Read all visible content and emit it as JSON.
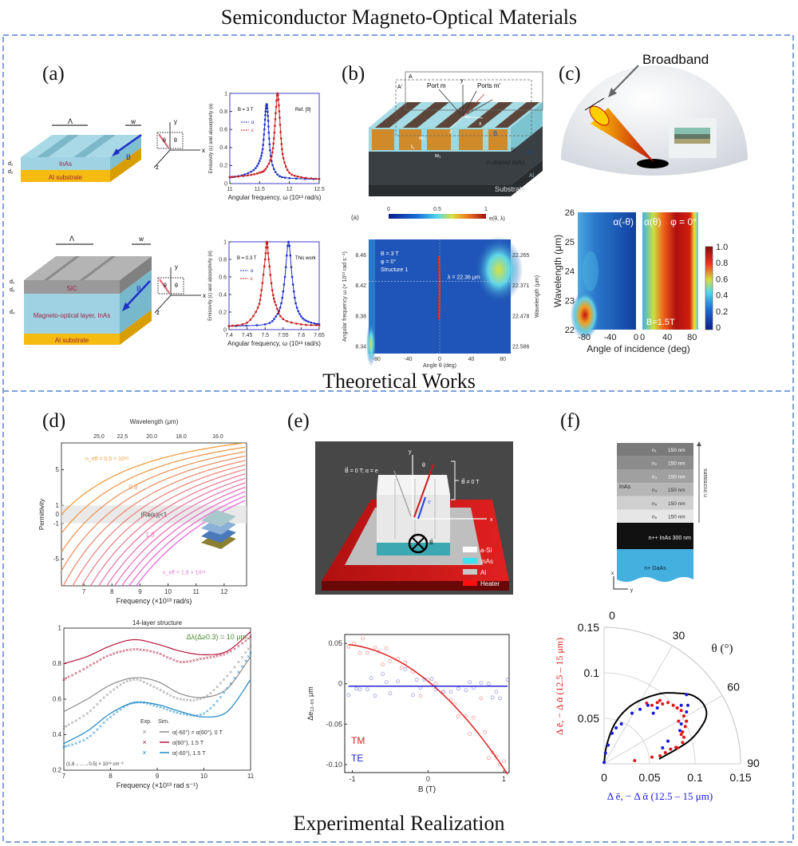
{
  "title": "Semiconductor Magneto-Optical Materials",
  "sections": {
    "theory": "Theoretical Works",
    "experiment": "Experimental Realization"
  },
  "colors": {
    "frame": "#7fa1d9",
    "blue": "#1f2fc8",
    "red": "#d42020",
    "inas": "#9fd3e3",
    "al": "#f2b705",
    "sic": "#9a9a9a"
  },
  "panels": {
    "a": {
      "label": "(a)",
      "top_structure": {
        "period": "Λ",
        "width": "w",
        "d1": "d₁",
        "d2": "d₂",
        "layer": "InAs",
        "substrate": "Al substrate",
        "field": "B"
      },
      "bottom_structure": {
        "period": "Λ",
        "width": "w",
        "d1": "d₁",
        "d2": "d₂",
        "d3": "d₃",
        "top_layer": "SiC",
        "layer": "Magneto-optical layer, InAs",
        "substrate": "Al substrate",
        "field": "B"
      },
      "axes_icon": {
        "x": "x",
        "y": "y",
        "z": "z",
        "theta": "θ"
      }
    },
    "b": {
      "label": "(b)",
      "structure": {
        "plane_a": "A",
        "plane_a2": "A'",
        "port_m": "Port m",
        "ports_m2": "Ports m'",
        "y": "y",
        "x": "x",
        "z": "z",
        "theta": "θ₀",
        "field": "B",
        "si": "Si",
        "al": "Al",
        "inas": "n-doped InAs",
        "al2": "Al",
        "substrate": "Substrate",
        "w1": "w₁",
        "w2": "w₂",
        "t1": "t₁"
      }
    },
    "c": {
      "label": "(c)",
      "broadband": "Broadband"
    },
    "d": {
      "label": "(d)"
    },
    "e": {
      "label": "(e)",
      "device": {
        "b_zero": "B⃗ = 0 T; α = e",
        "b_nonzero": "B⃗ ≠ 0 T",
        "theta": "θ",
        "y": "y",
        "x": "x",
        "e": "e",
        "field": "B⃗",
        "legend": [
          {
            "label": "a-Si",
            "color": "#ffffff"
          },
          {
            "label": "InAs",
            "color": "#3fe0f0"
          },
          {
            "label": "Al",
            "color": "#c8c8c8"
          },
          {
            "label": "Heater",
            "color": "#ff1010"
          }
        ]
      }
    },
    "f": {
      "label": "(f)",
      "stack": {
        "material": "InAs",
        "arrow_label": "n increases",
        "layers": [
          {
            "n": "n₁",
            "t": "150 nm",
            "c": "#7a7a7a"
          },
          {
            "n": "n₂",
            "t": "150 nm",
            "c": "#8c8c8c"
          },
          {
            "n": "n₃",
            "t": "150 nm",
            "c": "#a0a0a0"
          },
          {
            "n": "n₄",
            "t": "150 nm",
            "c": "#b6b6b6"
          },
          {
            "n": "n₅",
            "t": "150 nm",
            "c": "#cfcfcf"
          },
          {
            "n": "n₆",
            "t": "150 nm",
            "c": "#e6e6e6"
          }
        ],
        "heavy": "n++ InAs 300 nm",
        "substrate": "n+ GaAs",
        "x": "x",
        "y": "y"
      }
    }
  },
  "chart_data": [
    {
      "id": "a_top",
      "type": "line",
      "xlabel": "Angular frequency, ω (10¹³ rad/s)",
      "ylabel": "Emissivity (ε) and absorptivity (α)",
      "xlim": [
        11,
        12.5
      ],
      "ylim": [
        0,
        1
      ],
      "xticks": [
        11,
        11.5,
        12,
        12.5
      ],
      "yticks": [
        0,
        0.2,
        0.4,
        0.6,
        0.8,
        1
      ],
      "annotations": [
        "B = 3 T",
        "Ref. [9]"
      ],
      "series": [
        {
          "name": "α",
          "color": "#1f2fc8",
          "x": [
            11,
            11.2,
            11.4,
            11.5,
            11.55,
            11.58,
            11.6,
            11.62,
            11.64,
            11.66,
            11.7,
            11.8,
            12,
            12.5
          ],
          "y": [
            0.07,
            0.09,
            0.15,
            0.25,
            0.38,
            0.6,
            0.8,
            0.88,
            0.75,
            0.5,
            0.25,
            0.1,
            0.06,
            0.05
          ]
        },
        {
          "name": "ε",
          "color": "#c81e1e",
          "x": [
            11,
            11.3,
            11.5,
            11.6,
            11.7,
            11.74,
            11.77,
            11.8,
            11.83,
            11.86,
            11.9,
            12,
            12.2,
            12.5
          ],
          "y": [
            0.07,
            0.09,
            0.12,
            0.16,
            0.3,
            0.5,
            0.78,
            1.0,
            0.8,
            0.5,
            0.28,
            0.12,
            0.07,
            0.05
          ]
        }
      ]
    },
    {
      "id": "a_bottom",
      "type": "line",
      "xlabel": "Angular frequency, ω (10¹³ rad/s)",
      "ylabel": "Emissivity (ε) and absorptivity (α)",
      "xlim": [
        7.4,
        7.65
      ],
      "ylim": [
        0,
        1
      ],
      "xticks": [
        7.4,
        7.45,
        7.5,
        7.55,
        7.6,
        7.65
      ],
      "yticks": [
        0,
        0.2,
        0.4,
        0.6,
        0.8,
        1
      ],
      "annotations": [
        "B = 0.3 T",
        "This work"
      ],
      "series": [
        {
          "name": "α",
          "color": "#1f2fc8",
          "x": [
            7.4,
            7.5,
            7.53,
            7.545,
            7.555,
            7.565,
            7.575,
            7.585,
            7.6,
            7.62,
            7.65
          ],
          "y": [
            0.04,
            0.06,
            0.15,
            0.3,
            0.6,
            1.0,
            0.6,
            0.3,
            0.15,
            0.09,
            0.06
          ]
        },
        {
          "name": "ε",
          "color": "#c81e1e",
          "x": [
            7.4,
            7.45,
            7.48,
            7.49,
            7.5,
            7.505,
            7.51,
            7.52,
            7.53,
            7.55,
            7.6,
            7.65
          ],
          "y": [
            0.04,
            0.08,
            0.25,
            0.45,
            0.8,
            1.0,
            0.8,
            0.45,
            0.28,
            0.12,
            0.06,
            0.05
          ]
        }
      ]
    },
    {
      "id": "b_map",
      "type": "heatmap",
      "panel_tag": "(a)",
      "xlabel": "Angle θ (deg)",
      "ylabel": "Angular frequency ω (× 10¹³ rad s⁻¹)",
      "y2label": "Wavelength (μm)",
      "xlim": [
        -90,
        90
      ],
      "ylim": [
        8.33,
        8.48
      ],
      "xticks": [
        -80,
        -40,
        0,
        40,
        80
      ],
      "yticks": [
        8.34,
        8.38,
        8.42,
        8.46
      ],
      "y2ticks": [
        "22.586",
        "22.478",
        "22.371",
        "22.265"
      ],
      "colorbar": {
        "label": "e(θ, λ)",
        "ticks": [
          "0",
          "0.5",
          "1"
        ]
      },
      "annotations": [
        "B = 3 T",
        "φ = 0°",
        "Structure 1",
        "λ = 22.36 μm"
      ],
      "marker_line": 8.425
    },
    {
      "id": "c_map",
      "type": "heatmap",
      "xlabel": "Angle of incidence (deg)",
      "ylabel": "Wavelength (μm)",
      "ylim": [
        22,
        26
      ],
      "yticks": [
        22,
        23,
        24,
        25,
        26
      ],
      "left_xticks": [
        -80,
        -40,
        0
      ],
      "right_xticks": [
        0,
        40,
        80
      ],
      "panels": [
        "α(-θ)",
        "α(θ)"
      ],
      "annotations": [
        "φ = 0°",
        "B=1.5T"
      ],
      "colorbar": {
        "ticks": [
          "1.0",
          "0.8",
          "0.6",
          "0.4",
          "0.2",
          "0"
        ]
      }
    },
    {
      "id": "d_top",
      "type": "line",
      "xlabel": "Frequency (×10¹³ rad/s)",
      "ylabel": "Permittivity",
      "x2label": "Wavelength (μm)",
      "xlim": [
        6.2,
        12.8
      ],
      "ylim": [
        -8,
        8
      ],
      "xticks": [
        7,
        8,
        9,
        10,
        11,
        12
      ],
      "yticks": [
        5,
        1,
        0,
        -1,
        -5
      ],
      "x2ticks": [
        25.0,
        22.5,
        20.0,
        18.0,
        16.0
      ],
      "band_label": "|Re(ε)|<1",
      "curve_labels": [
        "n_eff = 0.5 × 10¹⁸",
        "0.8",
        "1.3",
        "n_eff = 1.8 × 10¹⁸"
      ],
      "doping_levels": [
        0.5,
        0.6,
        0.7,
        0.8,
        0.9,
        1.0,
        1.1,
        1.2,
        1.3,
        1.4,
        1.5,
        1.6,
        1.7,
        1.8
      ]
    },
    {
      "id": "d_bottom",
      "type": "line",
      "title": "14-layer structure",
      "xlabel": "Frequency (×10¹³ rad s⁻¹)",
      "xlim": [
        7,
        11
      ],
      "ylim": [
        0.2,
        1.0
      ],
      "xticks": [
        7,
        8,
        9,
        10,
        11
      ],
      "yticks": [
        0.2,
        0.4,
        0.6,
        0.8,
        1.0
      ],
      "annotations": [
        "Δλ(Δ≥0.3) = 10 μm",
        "(1.8→…→0.5) × 10¹⁸ cm⁻³"
      ],
      "legend": {
        "headers": [
          "Exp.",
          "Sim."
        ],
        "entries": [
          "α(-60°) = α(60°), 0 T",
          "α(60°), 1.5 T",
          "α(-60°), 1.5 T"
        ]
      },
      "x": [
        7,
        7.5,
        8,
        8.5,
        9,
        9.5,
        10,
        10.5,
        11
      ],
      "series": [
        {
          "name": "α(-60°) = α(60°), 0 T",
          "color": "#8a8a8a",
          "sim": [
            0.53,
            0.6,
            0.68,
            0.72,
            0.7,
            0.63,
            0.61,
            0.66,
            0.84
          ],
          "exp": [
            0.44,
            0.52,
            0.64,
            0.71,
            0.66,
            0.6,
            0.61,
            0.73,
            0.9
          ]
        },
        {
          "name": "α(60°), 1.5 T",
          "color": "#b5173a",
          "sim": [
            0.8,
            0.84,
            0.9,
            0.935,
            0.91,
            0.87,
            0.85,
            0.87,
            0.98
          ],
          "exp": [
            0.71,
            0.78,
            0.85,
            0.88,
            0.86,
            0.81,
            0.83,
            0.86,
            0.95
          ]
        },
        {
          "name": "α(-60°), 1.5 T",
          "color": "#1a86c8",
          "sim": [
            0.35,
            0.42,
            0.52,
            0.58,
            0.57,
            0.53,
            0.5,
            0.53,
            0.71
          ],
          "exp": [
            0.33,
            0.38,
            0.5,
            0.58,
            0.56,
            0.52,
            0.52,
            0.66,
            0.86
          ]
        }
      ]
    },
    {
      "id": "e_plot",
      "type": "scatter",
      "xlabel": "B (T)",
      "ylabel": "Δe₁₂.₆₅ μm",
      "xlim": [
        -1.1,
        1.07
      ],
      "ylim": [
        -0.11,
        0.061
      ],
      "xticks": [
        -1,
        0,
        1
      ],
      "yticks": [
        0.05,
        0,
        -0.05,
        -0.1
      ],
      "ytick_labels": [
        "0.05",
        "0",
        "-0.05",
        "-0.10"
      ],
      "series": [
        {
          "name": "TM",
          "color": "#e02020",
          "fit": {
            "type": "quadratic",
            "a": -0.0315,
            "b": -0.0765,
            "c": 0.003
          },
          "x": [
            -1.05,
            -0.98,
            -0.9,
            -0.86,
            -0.8,
            -0.7,
            -0.65,
            -0.6,
            -0.55,
            -0.5,
            -0.4,
            -0.35,
            -0.3,
            -0.2,
            -0.1,
            0,
            0.1,
            0.2,
            0.3,
            0.35,
            0.4,
            0.5,
            0.55,
            0.6,
            0.7,
            0.75,
            0.8,
            0.85,
            0.9,
            0.95,
            1.0
          ],
          "y": [
            0.046,
            0.05,
            0.038,
            0.056,
            0.038,
            0.045,
            0.04,
            0.024,
            0.044,
            0.028,
            0.031,
            0.02,
            0.026,
            0.015,
            -0.015,
            0.005,
            0,
            -0.01,
            -0.02,
            -0.025,
            -0.04,
            -0.04,
            -0.062,
            -0.042,
            -0.018,
            -0.06,
            -0.092,
            -0.085,
            -0.09,
            -0.1,
            -0.096
          ]
        },
        {
          "name": "TE",
          "color": "#2020d0",
          "fit": {
            "type": "constant",
            "c": -0.003
          },
          "x": [
            -1.05,
            -0.95,
            -0.9,
            -0.8,
            -0.75,
            -0.7,
            -0.6,
            -0.55,
            -0.5,
            -0.4,
            -0.3,
            -0.2,
            -0.15,
            -0.1,
            -0.05,
            0.05,
            0.1,
            0.2,
            0.3,
            0.4,
            0.5,
            0.55,
            0.6,
            0.7,
            0.8,
            0.85,
            0.9,
            0.95,
            1.05
          ],
          "y": [
            -0.014,
            -0.006,
            -0.007,
            -0.007,
            0.007,
            -0.015,
            0.012,
            0.002,
            -0.012,
            0.003,
            0.018,
            -0.014,
            0.005,
            -0.005,
            0.005,
            0.006,
            -0.007,
            -0.01,
            -0.01,
            -0.006,
            -0.008,
            0.002,
            -0.005,
            0.001,
            0,
            -0.017,
            -0.01,
            -0.018,
            0.005
          ]
        }
      ]
    },
    {
      "id": "f_polar",
      "type": "scatter",
      "xlabel": "Δ ē, − Δ ᾱ (12.5 – 15 μm)",
      "ylabel": "Δ ē, − Δ ᾱ (12.5 – 15 μm)",
      "angle_label": "θ (°)",
      "rlim": [
        0,
        0.15
      ],
      "rticks": [
        0.05,
        0.1,
        0.15
      ],
      "rtick_labels": [
        "0",
        "0.05",
        "0.1",
        "0.15"
      ],
      "angle_ticks": [
        0,
        30,
        60,
        90
      ],
      "curve": {
        "color": "#000000",
        "x": [
          0.0605,
          0.0921,
          0.108,
          0.1126,
          0.108,
          0.0965,
          0.0819,
          0.0643,
          0.0439,
          0.0263,
          0.0117,
          0.0029,
          0
        ],
        "y": [
          0.0053,
          0.024,
          0.0424,
          0.0556,
          0.0673,
          0.0754,
          0.0775,
          0.0775,
          0.0716,
          0.0614,
          0.0439,
          0.0205,
          0
        ]
      },
      "series": [
        {
          "name": "− Δ ᾱ",
          "color": "#e01818",
          "x": [
            0.0336,
            0.0526,
            0.0614,
            0.0673,
            0.0731,
            0.0789,
            0.0863,
            0.0877,
            0.0863,
            0.0892,
            0.0906,
            0.0877,
            0.0848,
            0.0804,
            0.076,
            0.0702,
            0.0643,
            0.0585,
            0.0526,
            0.0468,
            0.0614,
            0.0819,
            0.0848,
            0.0804
          ],
          "y": [
            0.0035,
            0.0073,
            0.0088,
            0.0123,
            0.0161,
            0.0181,
            0.0234,
            0.0292,
            0.0351,
            0.0409,
            0.0468,
            0.0526,
            0.0585,
            0.0614,
            0.0643,
            0.0673,
            0.0658,
            0.0673,
            0.0643,
            0.0667,
            0.0696,
            0.0468,
            0.0322,
            0.0175
          ]
        },
        {
          "name": "Δ ē",
          "color": "#1818e0",
          "x": [
            0,
            0.0015,
            0.0044,
            0.0088,
            0.0132,
            0.019,
            0.0307,
            0.0395,
            0.0482,
            0.0541,
            0.0585,
            0.0848,
            0.0906,
            0.0921,
            0.0906,
            0.0833,
            0.0702,
            0.0643,
            0.0848
          ],
          "y": [
            0.0015,
            0.0117,
            0.0205,
            0.0336,
            0.0395,
            0.0439,
            0.0556,
            0.0599,
            0.0643,
            0.0556,
            0.0614,
            0.0643,
            0.057,
            0.0643,
            0.076,
            0.0365,
            0.0249,
            0.0175,
            0.0439
          ]
        }
      ]
    }
  ]
}
